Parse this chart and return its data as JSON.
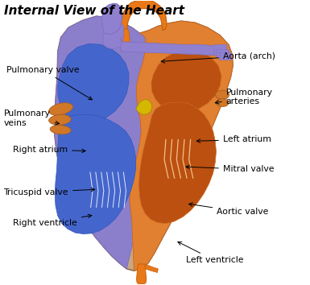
{
  "title": "Internal View of the Heart",
  "title_fontsize": 11,
  "title_fontweight": "bold",
  "bg_color": "#ffffff",
  "label_fontsize": 7.8,
  "annotations": {
    "Pulmonary valve": {
      "lxy": [
        0.02,
        0.755
      ],
      "axy": [
        0.305,
        0.645
      ],
      "ha": "left"
    },
    "Pulmonary\nveins": {
      "lxy": [
        0.01,
        0.585
      ],
      "axy": [
        0.2,
        0.565
      ],
      "ha": "left"
    },
    "Right atrium": {
      "lxy": [
        0.04,
        0.475
      ],
      "axy": [
        0.285,
        0.47
      ],
      "ha": "left"
    },
    "Tricuspid valve": {
      "lxy": [
        0.01,
        0.325
      ],
      "axy": [
        0.315,
        0.335
      ],
      "ha": "left"
    },
    "Right ventricle": {
      "lxy": [
        0.04,
        0.215
      ],
      "axy": [
        0.305,
        0.245
      ],
      "ha": "left"
    },
    "Aorta (arch)": {
      "lxy": [
        0.72,
        0.805
      ],
      "axy": [
        0.51,
        0.785
      ],
      "ha": "left"
    },
    "Pulmonary\narteries": {
      "lxy": [
        0.73,
        0.66
      ],
      "axy": [
        0.685,
        0.638
      ],
      "ha": "left"
    },
    "Left atrium": {
      "lxy": [
        0.72,
        0.51
      ],
      "axy": [
        0.625,
        0.505
      ],
      "ha": "left"
    },
    "Mitral valve": {
      "lxy": [
        0.72,
        0.405
      ],
      "axy": [
        0.59,
        0.415
      ],
      "ha": "left"
    },
    "Aortic valve": {
      "lxy": [
        0.7,
        0.255
      ],
      "axy": [
        0.6,
        0.285
      ],
      "ha": "left"
    },
    "Left ventricle": {
      "lxy": [
        0.6,
        0.085
      ],
      "axy": [
        0.565,
        0.155
      ],
      "ha": "left"
    }
  },
  "colors": {
    "heart_outer": "#d4a878",
    "heart_muscle": "#c8956c",
    "right_purple": "#8b7fcc",
    "right_purple2": "#7b6bbf",
    "right_blue_dark": "#3355bb",
    "right_blue": "#4466cc",
    "left_orange": "#e08030",
    "left_orange2": "#cc6820",
    "left_dark": "#bb5010",
    "aorta_orange": "#e87818",
    "pulm_purple": "#9080d0",
    "pulm_purple2": "#8070c0",
    "vein_orange": "#d07828",
    "tan": "#d4b896",
    "tan2": "#c8a882",
    "white": "#ffffff",
    "cream": "#f0e0c0",
    "yellow": "#d4b800",
    "outline": "#806040"
  }
}
